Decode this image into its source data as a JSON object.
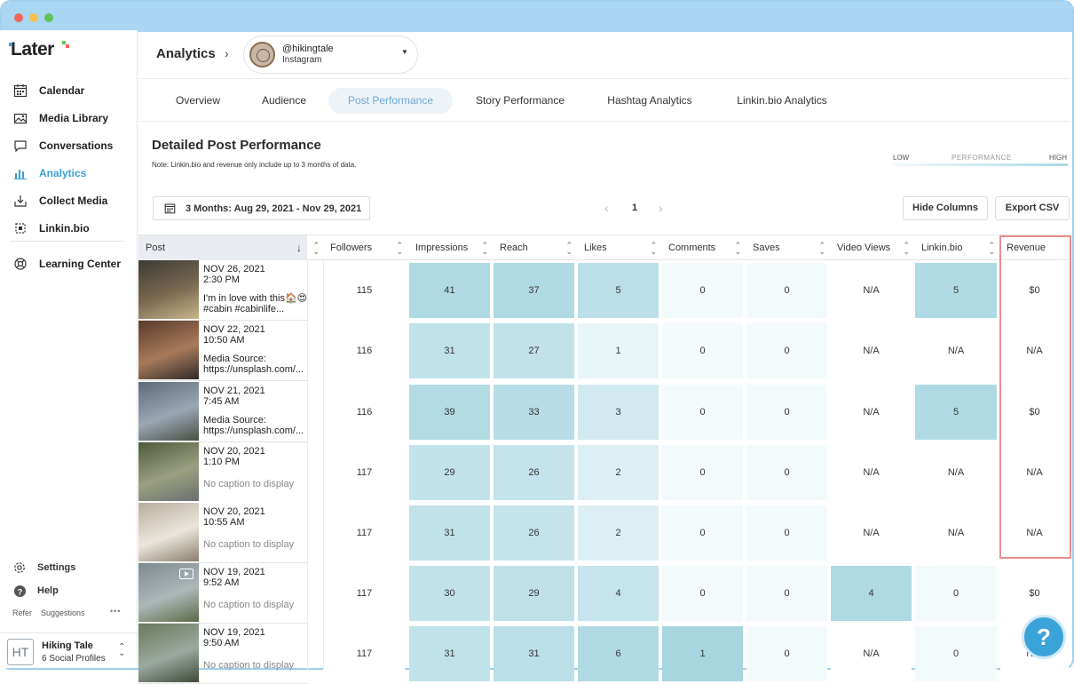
{
  "brand": {
    "logo": "Later"
  },
  "sidebar": {
    "items": [
      {
        "label": "Calendar",
        "icon": "calendar-icon"
      },
      {
        "label": "Media Library",
        "icon": "media-library-icon"
      },
      {
        "label": "Conversations",
        "icon": "conversations-icon"
      },
      {
        "label": "Analytics",
        "icon": "analytics-icon",
        "active": true
      },
      {
        "label": "Collect Media",
        "icon": "collect-media-icon"
      },
      {
        "label": "Linkin.bio",
        "icon": "linkin-bio-icon"
      }
    ],
    "learning": "Learning Center",
    "settings": "Settings",
    "help": "Help",
    "refer": "Refer",
    "suggestions": "Suggestions",
    "profile": {
      "initials": "HT",
      "name": "Hiking Tale",
      "sub": "6 Social Profiles"
    }
  },
  "header": {
    "breadcrumb": "Analytics",
    "account": {
      "handle": "@hikingtale",
      "network": "Instagram"
    }
  },
  "tabs": [
    "Overview",
    "Audience",
    "Post Performance",
    "Story Performance",
    "Hashtag Analytics",
    "Linkin.bio Analytics"
  ],
  "active_tab": "Post Performance",
  "content": {
    "title": "Detailed Post Performance",
    "note": "Note: Linkin.bio and revenue only include up to 3 months of data.",
    "legend": {
      "low": "LOW",
      "mid": "PERFORMANCE",
      "high": "HIGH"
    },
    "date_range": "3 Months: Aug 29, 2021 - Nov 29, 2021",
    "page": "1",
    "hide_columns": "Hide Columns",
    "export_csv": "Export CSV"
  },
  "table": {
    "columns": [
      "Post",
      "Followers",
      "Impressions",
      "Reach",
      "Likes",
      "Comments",
      "Saves",
      "Video Views",
      "Linkin.bio",
      "Revenue"
    ],
    "rows": [
      {
        "date": "NOV 26, 2021",
        "time": "2:30 PM",
        "caption": "I'm in love with this🏠😍 #cabin #cabinlife...",
        "muted": false,
        "followers": "115",
        "impressions": "41",
        "reach": "37",
        "likes": "5",
        "comments": "0",
        "saves": "0",
        "video_views": "N/A",
        "linkin": "5",
        "revenue": "$0"
      },
      {
        "date": "NOV 22, 2021",
        "time": "10:50 AM",
        "caption": "Media Source: https://unsplash.com/...",
        "muted": false,
        "followers": "116",
        "impressions": "31",
        "reach": "27",
        "likes": "1",
        "comments": "0",
        "saves": "0",
        "video_views": "N/A",
        "linkin": "N/A",
        "revenue": "N/A"
      },
      {
        "date": "NOV 21, 2021",
        "time": "7:45 AM",
        "caption": "Media Source: https://unsplash.com/...",
        "muted": false,
        "followers": "116",
        "impressions": "39",
        "reach": "33",
        "likes": "3",
        "comments": "0",
        "saves": "0",
        "video_views": "N/A",
        "linkin": "5",
        "revenue": "$0"
      },
      {
        "date": "NOV 20, 2021",
        "time": "1:10 PM",
        "caption": "No caption to display",
        "muted": true,
        "followers": "117",
        "impressions": "29",
        "reach": "26",
        "likes": "2",
        "comments": "0",
        "saves": "0",
        "video_views": "N/A",
        "linkin": "N/A",
        "revenue": "N/A"
      },
      {
        "date": "NOV 20, 2021",
        "time": "10:55 AM",
        "caption": "No caption to display",
        "muted": true,
        "followers": "117",
        "impressions": "31",
        "reach": "26",
        "likes": "2",
        "comments": "0",
        "saves": "0",
        "video_views": "N/A",
        "linkin": "N/A",
        "revenue": "N/A"
      },
      {
        "date": "NOV 19, 2021",
        "time": "9:52 AM",
        "caption": "No caption to display",
        "muted": true,
        "followers": "117",
        "impressions": "30",
        "reach": "29",
        "likes": "4",
        "comments": "0",
        "saves": "0",
        "video_views": "4",
        "linkin": "0",
        "revenue": "$0"
      },
      {
        "date": "NOV 19, 2021",
        "time": "9:50 AM",
        "caption": "No caption to display",
        "muted": true,
        "followers": "117",
        "impressions": "31",
        "reach": "31",
        "likes": "6",
        "comments": "1",
        "saves": "0",
        "video_views": "N/A",
        "linkin": "0",
        "revenue": "N/A"
      }
    ]
  },
  "colors": {
    "accent": "#3d9fd6",
    "heat_low": "#f2f9fb",
    "heat_high": "#9fd0dc",
    "highlight_border": "#ec8c8c"
  }
}
